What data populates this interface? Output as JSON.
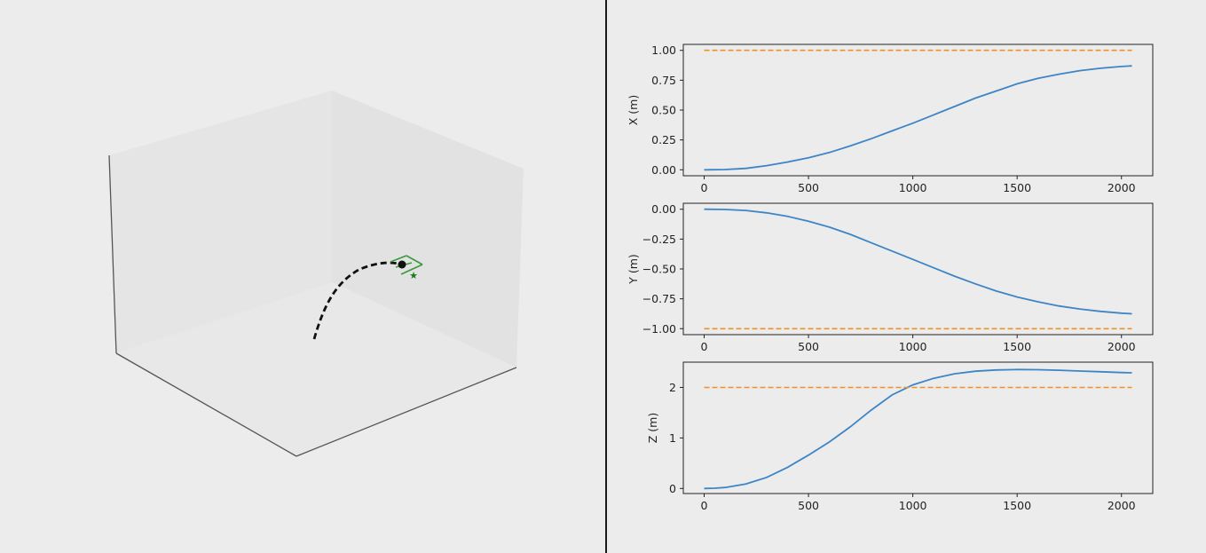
{
  "colors": {
    "background": "#ececec",
    "actual": "#3d85c6",
    "target": "#f0902a",
    "path": "#111111",
    "drone": "#3a9a3a",
    "goal": "#1a7a1a"
  },
  "scene_3d": {
    "type": "3d-trajectory",
    "trajectory_style": "dashed",
    "markers": [
      "current-position-dot",
      "drone-frame",
      "goal-star"
    ]
  },
  "chart_data": [
    {
      "type": "line",
      "ylabel": "X (m)",
      "xlim": [
        -100,
        2150
      ],
      "ylim": [
        -0.05,
        1.05
      ],
      "xticks": [
        "0",
        "500",
        "1000",
        "1500",
        "2000"
      ],
      "yticks": [
        "0.00",
        "0.25",
        "0.50",
        "0.75",
        "1.00"
      ],
      "ytick_values": [
        0,
        0.25,
        0.5,
        0.75,
        1.0
      ],
      "series": [
        {
          "role": "actual",
          "style": "solid",
          "x": [
            0,
            100,
            200,
            300,
            400,
            500,
            600,
            700,
            800,
            900,
            1000,
            1100,
            1200,
            1300,
            1400,
            1500,
            1600,
            1700,
            1800,
            1900,
            2000,
            2050
          ],
          "y": [
            0.0,
            0.002,
            0.012,
            0.035,
            0.065,
            0.1,
            0.145,
            0.2,
            0.26,
            0.325,
            0.39,
            0.46,
            0.53,
            0.6,
            0.66,
            0.72,
            0.765,
            0.8,
            0.83,
            0.85,
            0.865,
            0.87
          ]
        },
        {
          "role": "target",
          "style": "dashed",
          "x": [
            0,
            2050
          ],
          "y": [
            1.0,
            1.0
          ]
        }
      ]
    },
    {
      "type": "line",
      "ylabel": "Y (m)",
      "xlim": [
        -100,
        2150
      ],
      "ylim": [
        -1.05,
        0.05
      ],
      "xticks": [
        "0",
        "500",
        "1000",
        "1500",
        "2000"
      ],
      "yticks": [
        "−1.00",
        "−0.75",
        "−0.50",
        "−0.25",
        "0.00"
      ],
      "ytick_values": [
        -1.0,
        -0.75,
        -0.5,
        -0.25,
        0.0
      ],
      "series": [
        {
          "role": "actual",
          "style": "solid",
          "x": [
            0,
            100,
            200,
            300,
            400,
            500,
            600,
            700,
            800,
            900,
            1000,
            1100,
            1200,
            1300,
            1400,
            1500,
            1600,
            1700,
            1800,
            1900,
            2000,
            2050
          ],
          "y": [
            0.0,
            -0.002,
            -0.01,
            -0.03,
            -0.06,
            -0.1,
            -0.15,
            -0.21,
            -0.28,
            -0.35,
            -0.42,
            -0.49,
            -0.56,
            -0.625,
            -0.685,
            -0.735,
            -0.775,
            -0.81,
            -0.835,
            -0.855,
            -0.87,
            -0.875
          ]
        },
        {
          "role": "target",
          "style": "dashed",
          "x": [
            0,
            2050
          ],
          "y": [
            -1.0,
            -1.0
          ]
        }
      ]
    },
    {
      "type": "line",
      "ylabel": "Z (m)",
      "xlim": [
        -100,
        2150
      ],
      "ylim": [
        -0.1,
        2.5
      ],
      "xticks": [
        "0",
        "500",
        "1000",
        "1500",
        "2000"
      ],
      "yticks": [
        "0",
        "1",
        "2"
      ],
      "ytick_values": [
        0,
        1,
        2
      ],
      "series": [
        {
          "role": "actual",
          "style": "solid",
          "x": [
            0,
            50,
            100,
            200,
            300,
            400,
            500,
            600,
            700,
            800,
            900,
            1000,
            1100,
            1200,
            1300,
            1400,
            1500,
            1600,
            1700,
            1800,
            1900,
            2000,
            2050
          ],
          "y": [
            0.0,
            0.005,
            0.02,
            0.09,
            0.22,
            0.42,
            0.66,
            0.92,
            1.22,
            1.55,
            1.85,
            2.05,
            2.18,
            2.27,
            2.32,
            2.345,
            2.355,
            2.35,
            2.34,
            2.325,
            2.31,
            2.295,
            2.29
          ]
        },
        {
          "role": "target",
          "style": "dashed",
          "x": [
            0,
            2050
          ],
          "y": [
            2.0,
            2.0
          ]
        }
      ]
    }
  ]
}
